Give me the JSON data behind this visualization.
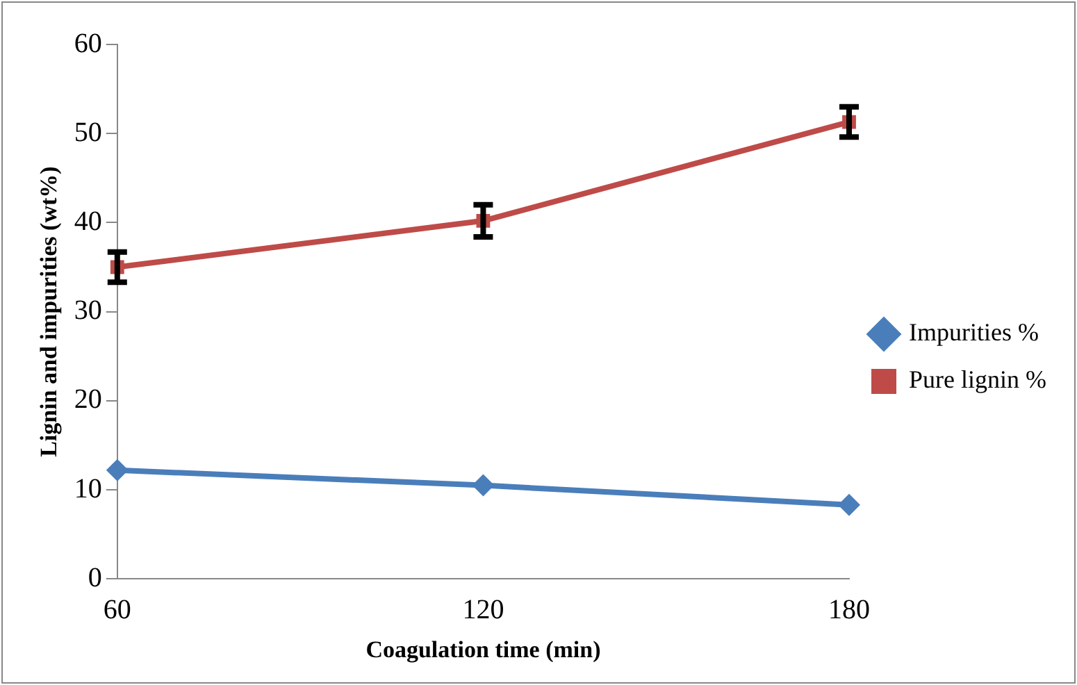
{
  "chart_data": {
    "type": "line",
    "xlabel": "Coagulation time (min)",
    "ylabel": "Lignin and impurities (wt%)",
    "categories": [
      "60",
      "120",
      "180"
    ],
    "series": [
      {
        "name": "Impurities %",
        "color": "#4a7ebb",
        "marker": "diamond",
        "values": [
          12.2,
          10.5,
          8.3
        ]
      },
      {
        "name": "Pure lignin %",
        "color": "#be4b48",
        "marker": "square",
        "values": [
          35,
          40.2,
          51.3
        ],
        "errors": [
          1.7,
          1.8,
          1.7
        ]
      }
    ],
    "ylim": [
      0,
      60
    ],
    "yticks": [
      0,
      10,
      20,
      30,
      40,
      50,
      60
    ],
    "grid": false,
    "legend": "right",
    "line_style": "solid"
  }
}
